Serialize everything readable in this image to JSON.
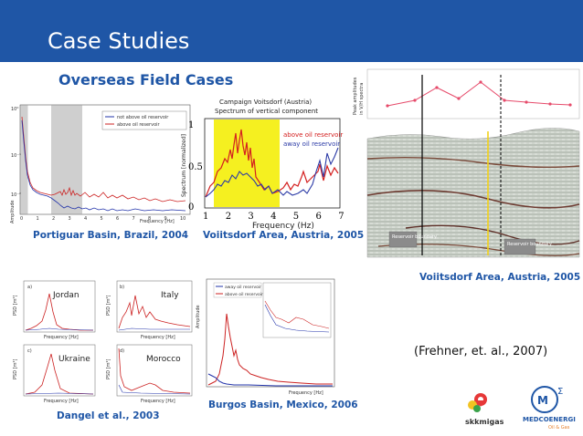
{
  "slide": {
    "title": "Case Studies",
    "subtitle": "Overseas Field Cases",
    "header_color": "#1f56a6",
    "caption_color": "#1f56a6"
  },
  "panels": {
    "brazil": {
      "caption": "Portiguar Basin, Brazil, 2004",
      "legend": [
        "not above oil reservoir",
        "above oil reservoir"
      ],
      "xlabel": "Frequency [Hz]",
      "ylabel": "Amplitude",
      "yticks": [
        "10⁰",
        "10⁻¹",
        "10⁻²"
      ],
      "xticks": [
        "0",
        "1",
        "2",
        "3",
        "4",
        "5",
        "6",
        "7",
        "8",
        "9",
        "10"
      ]
    },
    "voitsdorf_spectrum": {
      "caption": "Voiitsdorf Area, Austria, 2005",
      "title_line1": "Campaign Voitsdorf (Austria)",
      "title_line2": "Spectrum of vertical component",
      "legend": [
        "above oil reservoir",
        "away oil reservoir"
      ],
      "xlabel": "Frequency (Hz)",
      "ylabel": "Spectrum [normalized]",
      "xticks": [
        "1",
        "2",
        "3",
        "4",
        "5",
        "6",
        "7"
      ],
      "yticks": [
        "0",
        "0.5",
        "1"
      ]
    },
    "voitsdorf_section": {
      "caption": "Voiitsdorf Area, Austria, 2005",
      "ylabel_line1": "Peak amplitudes",
      "ylabel_line2": "in V/H spectra",
      "boundary_label_left": "Reservoir boundary",
      "boundary_label_right": "Reservoir boundary"
    },
    "dangel": {
      "caption": "Dangel et al., 2003",
      "subplots": [
        {
          "tag": "a)",
          "name": "Jordan"
        },
        {
          "tag": "b)",
          "name": "Italy"
        },
        {
          "tag": "c)",
          "name": "Ukraine"
        },
        {
          "tag": "d)",
          "name": "Morocco"
        }
      ],
      "xlabel": "Frequency [Hz]",
      "ylabel": "PSD [m²]"
    },
    "burgos": {
      "caption": "Burgos Basin, Mexico, 2006",
      "legend": [
        "away oil reservoir",
        "above oil reservoir"
      ],
      "xlabel": "Frequency [Hz]",
      "ylabel": "Amplitude"
    }
  },
  "citation": "(Frehner, et. al., 2007)",
  "logos": {
    "skk": "skkmigas",
    "medco": "MEDCOENERGI",
    "medco_sub": "Oil & Gas"
  }
}
